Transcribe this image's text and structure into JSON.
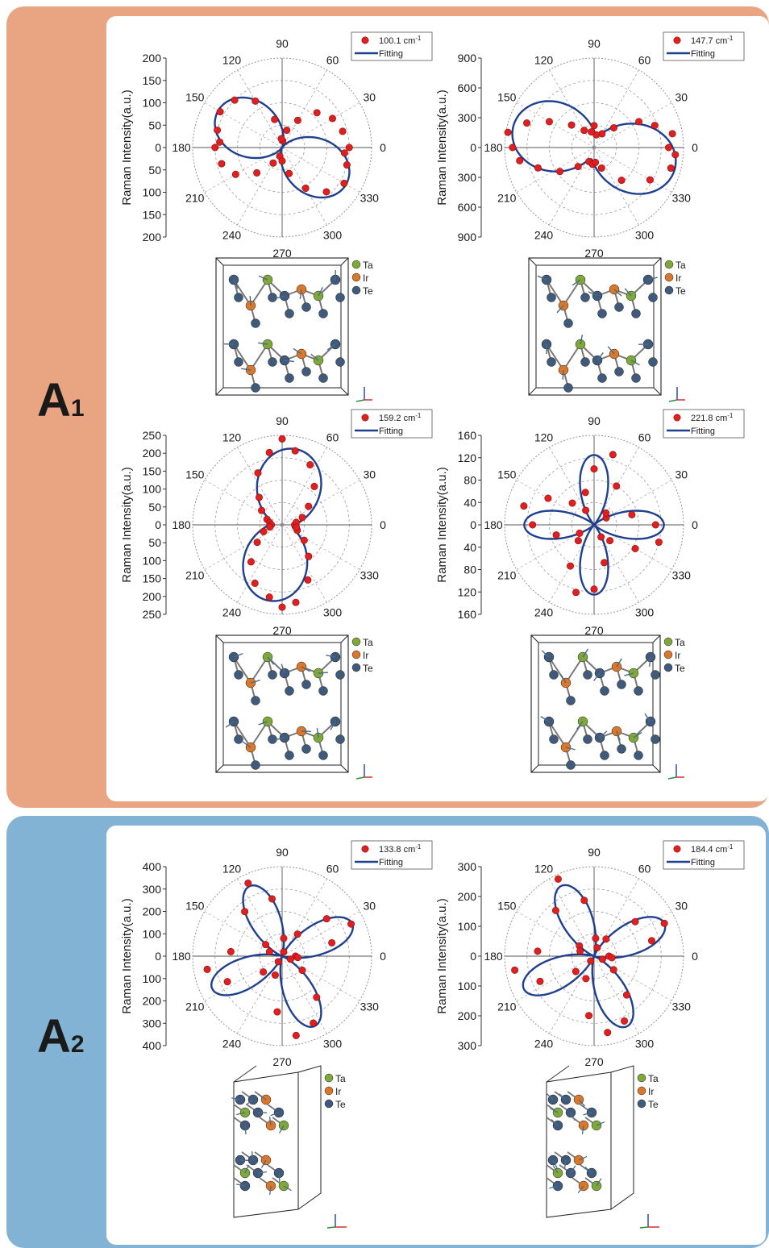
{
  "sections": [
    {
      "label_letter": "A",
      "label_sub": "1"
    },
    {
      "label_letter": "A",
      "label_sub": "2"
    }
  ],
  "colors": {
    "panel_a1": "#e9a582",
    "panel_a2": "#82b3d5",
    "fit_line": "#1f3f8f",
    "data_point": "#e02020",
    "ta_atom": "#7ea83a",
    "ir_atom": "#d9772b",
    "te_atom": "#3f5a7a"
  },
  "atom_legend": [
    "Ta",
    "Ir",
    "Te"
  ],
  "angle_labels": [
    "0",
    "30",
    "60",
    "90",
    "120",
    "150",
    "180",
    "210",
    "240",
    "270",
    "300",
    "330"
  ],
  "chart_data": [
    {
      "type": "scatter",
      "section": "A1",
      "ylabel": "Raman Intensity(a.u.)",
      "r_ticks": [
        "200",
        "150",
        "100",
        "50",
        "0",
        "50",
        "100",
        "150",
        "200"
      ],
      "rmax": 200,
      "legend": {
        "mode": "100.1 cm",
        "sup": "-1",
        "fit": "Fitting"
      },
      "series": [
        {
          "name": "100.1 cm-1",
          "kind": "points",
          "theta": [
            0,
            15,
            30,
            45,
            60,
            75,
            85,
            95,
            105,
            120,
            135,
            150,
            165,
            175,
            180,
            195,
            210,
            225,
            240,
            255,
            270,
            285,
            300,
            315,
            330,
            345,
            355
          ],
          "r": [
            150,
            140,
            130,
            110,
            70,
            40,
            15,
            20,
            65,
            120,
            150,
            160,
            150,
            140,
            150,
            140,
            120,
            80,
            40,
            20,
            30,
            60,
            105,
            140,
            160,
            150,
            140
          ]
        },
        {
          "name": "Fitting",
          "kind": "fit",
          "a": 0,
          "b": 165,
          "phi": 150
        }
      ]
    },
    {
      "type": "scatter",
      "section": "A1",
      "ylabel": "Raman Intensity(a.u.)",
      "r_ticks": [
        "900",
        "600",
        "300",
        "0",
        "300",
        "600",
        "900"
      ],
      "rmax": 900,
      "legend": {
        "mode": "147.7 cm",
        "sup": "-1",
        "fit": "Fitting"
      },
      "series": [
        {
          "name": "147.7 cm-1",
          "kind": "points",
          "theta": [
            0,
            10,
            20,
            30,
            45,
            60,
            80,
            90,
            100,
            120,
            135,
            150,
            160,
            170,
            180,
            190,
            200,
            215,
            230,
            250,
            265,
            275,
            290,
            310,
            330,
            345,
            355
          ],
          "r": [
            750,
            800,
            650,
            520,
            280,
            160,
            130,
            220,
            160,
            200,
            320,
            520,
            720,
            880,
            820,
            760,
            600,
            420,
            250,
            150,
            170,
            150,
            220,
            430,
            650,
            800,
            820
          ]
        },
        {
          "name": "Fitting",
          "kind": "fit",
          "a": 120,
          "b": 720,
          "phi": 165
        }
      ]
    },
    {
      "type": "scatter",
      "section": "A1",
      "ylabel": "Raman Intensity(a.u.)",
      "r_ticks": [
        "250",
        "200",
        "150",
        "100",
        "50",
        "0",
        "50",
        "100",
        "150",
        "200",
        "250"
      ],
      "rmax": 250,
      "legend": {
        "mode": "159.2 cm",
        "sup": "-1",
        "fit": "Fitting"
      },
      "series": [
        {
          "name": "159.2 cm-1",
          "kind": "points",
          "theta": [
            0,
            10,
            20,
            35,
            50,
            65,
            80,
            90,
            100,
            115,
            130,
            145,
            160,
            170,
            180,
            190,
            200,
            215,
            230,
            245,
            260,
            270,
            280,
            295,
            310,
            325,
            340,
            350
          ],
          "r": [
            35,
            40,
            60,
            90,
            140,
            185,
            210,
            240,
            205,
            160,
            100,
            70,
            45,
            35,
            30,
            35,
            55,
            85,
            135,
            180,
            205,
            230,
            220,
            170,
            115,
            75,
            45,
            40
          ]
        },
        {
          "name": "Fitting",
          "kind": "fit",
          "a": 30,
          "b": 185,
          "phi": 80
        }
      ]
    },
    {
      "type": "scatter",
      "section": "A1",
      "ylabel": "Raman Intensity(a.u.)",
      "r_ticks": [
        "160",
        "120",
        "80",
        "40",
        "0",
        "40",
        "80",
        "120",
        "160"
      ],
      "rmax": 160,
      "legend": {
        "mode": "221.8 cm",
        "sup": "-1",
        "fit": "Fitting"
      },
      "series": [
        {
          "name": "221.8 cm-1",
          "kind": "points",
          "theta": [
            0,
            15,
            30,
            45,
            60,
            75,
            90,
            105,
            120,
            135,
            150,
            165,
            180,
            195,
            210,
            225,
            240,
            255,
            270,
            285,
            300,
            315,
            330,
            345
          ],
          "r": [
            110,
            70,
            25,
            30,
            80,
            130,
            100,
            60,
            30,
            55,
            95,
            130,
            110,
            70,
            30,
            40,
            85,
            125,
            115,
            70,
            25,
            40,
            85,
            120
          ]
        },
        {
          "name": "Fitting",
          "kind": "fourfold",
          "amp": 125,
          "phi": 0
        }
      ]
    },
    {
      "type": "scatter",
      "section": "A2",
      "ylabel": "Raman Intensity(a.u.)",
      "r_ticks": [
        "400",
        "300",
        "200",
        "100",
        "0",
        "100",
        "200",
        "300",
        "400"
      ],
      "rmax": 400,
      "legend": {
        "mode": "133.8 cm",
        "sup": "-1",
        "fit": "Fitting"
      },
      "series": [
        {
          "name": "133.8 cm-1",
          "kind": "points",
          "theta": [
            0,
            15,
            25,
            40,
            55,
            70,
            85,
            100,
            115,
            130,
            145,
            160,
            175,
            190,
            205,
            220,
            235,
            250,
            265,
            280,
            295,
            310,
            325,
            340,
            355
          ],
          "r": [
            60,
            230,
            340,
            260,
            120,
            20,
            80,
            260,
            360,
            260,
            90,
            60,
            230,
            340,
            270,
            110,
            30,
            90,
            250,
            360,
            330,
            240,
            110,
            40,
            70
          ]
        },
        {
          "name": "Fitting",
          "kind": "fourfold",
          "amp": 345,
          "phi": 25
        }
      ]
    },
    {
      "type": "scatter",
      "section": "A2",
      "ylabel": "Raman Intensity(a.u.)",
      "r_ticks": [
        "300",
        "200",
        "100",
        "0",
        "100",
        "200",
        "300"
      ],
      "rmax": 300,
      "legend": {
        "mode": "184.4 cm",
        "sup": "-1",
        "fit": "Fitting"
      },
      "series": [
        {
          "name": "184.4 cm-1",
          "kind": "points",
          "theta": [
            0,
            15,
            25,
            40,
            55,
            70,
            85,
            100,
            115,
            130,
            145,
            160,
            175,
            190,
            205,
            220,
            235,
            250,
            265,
            280,
            295,
            310,
            325,
            340,
            355
          ],
          "r": [
            50,
            200,
            260,
            180,
            70,
            30,
            60,
            190,
            285,
            200,
            60,
            50,
            190,
            270,
            200,
            80,
            20,
            80,
            200,
            260,
            240,
            170,
            80,
            30,
            60
          ]
        },
        {
          "name": "Fitting",
          "kind": "fourfold",
          "amp": 260,
          "phi": 25
        }
      ]
    }
  ]
}
